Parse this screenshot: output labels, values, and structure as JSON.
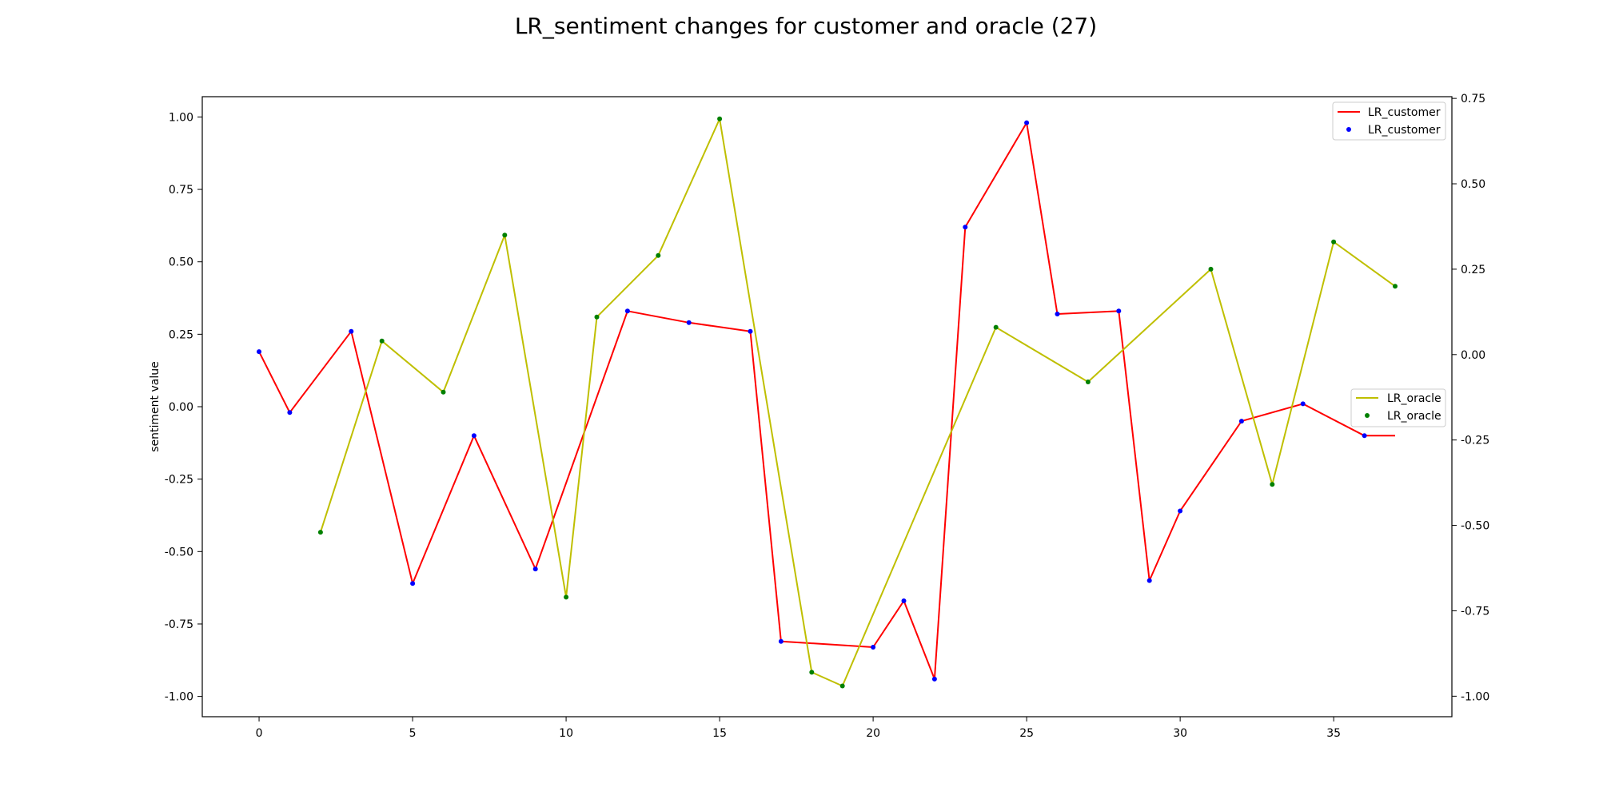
{
  "chart_data": {
    "type": "line",
    "title": "LR_sentiment changes for customer and oracle (27)",
    "ylabel": "sentiment value",
    "xlabel": "",
    "xlim": [
      -1.85,
      38.85
    ],
    "x_ticks": [
      0,
      5,
      10,
      15,
      20,
      25,
      30,
      35
    ],
    "y_left": {
      "lim": [
        -1.07,
        1.07
      ],
      "ticks": [
        -1.0,
        -0.75,
        -0.5,
        -0.25,
        0.0,
        0.25,
        0.5,
        0.75,
        1.0
      ],
      "tick_labels": [
        "-1.00",
        "-0.75",
        "-0.50",
        "-0.25",
        "0.00",
        "0.25",
        "0.50",
        "0.75",
        "1.00"
      ]
    },
    "y_right": {
      "lim": [
        -1.06,
        0.755
      ],
      "ticks": [
        -1.0,
        -0.75,
        -0.5,
        -0.25,
        0.0,
        0.25,
        0.5,
        0.75
      ],
      "tick_labels": [
        "-1.00",
        "-0.75",
        "-0.50",
        "-0.25",
        "0.00",
        "0.25",
        "0.50",
        "0.75"
      ]
    },
    "grid": false,
    "series": [
      {
        "name": "LR_customer",
        "axis": "left",
        "line_color": "#ff0000",
        "marker_color": "#0000ff",
        "x": [
          0,
          1,
          3,
          5,
          7,
          9,
          12,
          14,
          16,
          17,
          20,
          21,
          22,
          23,
          25,
          26,
          28,
          29,
          30,
          32,
          34,
          36,
          37
        ],
        "y": [
          0.19,
          -0.02,
          0.26,
          -0.61,
          -0.1,
          -0.56,
          0.33,
          0.29,
          0.26,
          -0.81,
          -0.83,
          -0.67,
          -0.94,
          0.62,
          0.98,
          0.32,
          0.33,
          -0.6,
          -0.36,
          -0.05,
          0.01,
          -0.1,
          -0.1
        ],
        "markers": [
          true,
          true,
          true,
          true,
          true,
          true,
          true,
          true,
          true,
          true,
          true,
          true,
          true,
          true,
          true,
          true,
          true,
          true,
          true,
          true,
          true,
          true,
          false
        ]
      },
      {
        "name": "LR_oracle",
        "axis": "right",
        "line_color": "#bfbf00",
        "marker_color": "#008000",
        "x": [
          2,
          4,
          6,
          8,
          10,
          11,
          13,
          15,
          18,
          19,
          24,
          27,
          31,
          33,
          35,
          37
        ],
        "y": [
          -0.52,
          0.04,
          -0.11,
          0.35,
          -0.71,
          0.11,
          0.29,
          0.69,
          -0.93,
          -0.97,
          0.08,
          -0.08,
          0.25,
          -0.38,
          0.33,
          0.2
        ],
        "markers": [
          true,
          true,
          true,
          true,
          true,
          true,
          true,
          true,
          true,
          true,
          true,
          true,
          true,
          true,
          true,
          true
        ]
      }
    ],
    "legends": [
      {
        "placement": "top-right",
        "entries": [
          "LR_customer",
          "LR_customer"
        ]
      },
      {
        "placement": "center-right",
        "entries": [
          "LR_oracle",
          "LR_oracle"
        ]
      }
    ]
  }
}
